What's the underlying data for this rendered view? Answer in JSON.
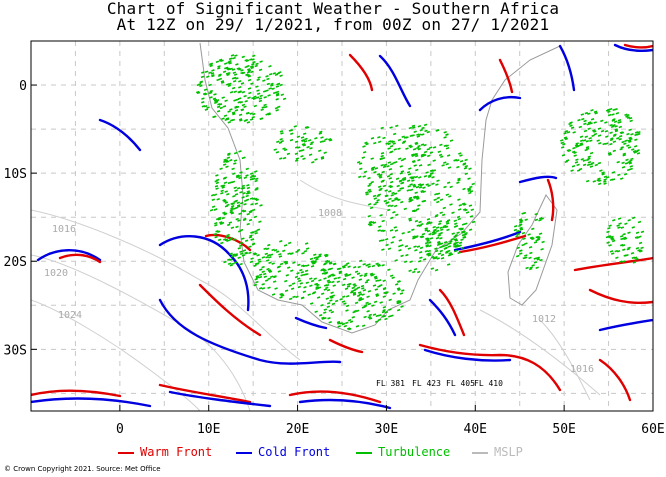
{
  "title": {
    "line1": "Chart of Significant Weather - Southern Africa",
    "line2": "At 12Z on 29/ 1/2021, from 00Z on 27/ 1/2021"
  },
  "axes": {
    "lon_range": [
      -10,
      60
    ],
    "lat_range": [
      -37,
      5
    ],
    "y_ticks": [
      {
        "lat": 0,
        "label": "0"
      },
      {
        "lat": -10,
        "label": "10S"
      },
      {
        "lat": -20,
        "label": "20S"
      },
      {
        "lat": -30,
        "label": "30S"
      }
    ],
    "x_ticks": [
      {
        "lon": 0,
        "label": "0"
      },
      {
        "lon": 10,
        "label": "10E"
      },
      {
        "lon": 20,
        "label": "20E"
      },
      {
        "lon": 30,
        "label": "30E"
      },
      {
        "lon": 40,
        "label": "40E"
      },
      {
        "lon": 50,
        "label": "50E"
      },
      {
        "lon": 60,
        "label": "60E"
      }
    ],
    "gridlines": true
  },
  "isobars": [
    {
      "label": "1016"
    },
    {
      "label": "1020"
    },
    {
      "label": "1024"
    },
    {
      "label": "1008"
    },
    {
      "label": "1012"
    },
    {
      "label": "1016"
    }
  ],
  "flight_levels": [
    "FL 381",
    "FL 423",
    "FL 405",
    "FL 410"
  ],
  "legend": {
    "items": [
      {
        "label": "Warm Front",
        "color": "#e00000"
      },
      {
        "label": "Cold Front",
        "color": "#0000e0"
      },
      {
        "label": "Turbulence",
        "color": "#00c000"
      },
      {
        "label": "MSLP",
        "color": "#bbbbbb"
      }
    ]
  },
  "copyright": "© Crown Copyright 2021. Source: Met Office",
  "colors": {
    "coast": "#9a9a9a",
    "grid": "#c8c8c8",
    "warm": "#e00000",
    "cold": "#0000e0",
    "turb": "#00c000"
  }
}
